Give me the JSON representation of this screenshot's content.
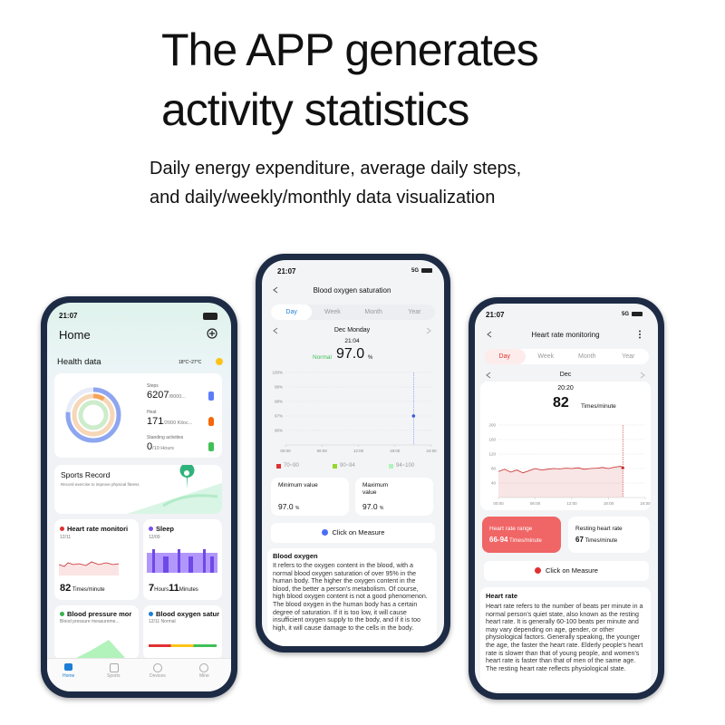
{
  "header": {
    "title_lines": [
      "The APP generates",
      "activity statistics"
    ],
    "subtitle_lines": [
      "Daily energy expenditure, average daily steps,",
      "and daily/weekly/monthly data visualization"
    ]
  },
  "left_phone": {
    "time": "21:07",
    "page_title": "Home",
    "section_title": "Health data",
    "weather": "18°C~27°C",
    "steps": {
      "label": "Steps",
      "value": "6207",
      "goal": "/8000..."
    },
    "heat": {
      "label": "Heat",
      "value": "171",
      "goal": "/2000 Kiloc..."
    },
    "standing": {
      "label": "Standing activities",
      "value": "0",
      "goal": "/10 Hours"
    },
    "sports_record": {
      "title": "Sports Record",
      "subtitle": "Record exercise to improve physical fitness"
    },
    "heart_card": {
      "title": "Heart rate monitori",
      "date": "12/11",
      "value": "82",
      "unit": "Times/minute"
    },
    "sleep_card": {
      "title": "Sleep",
      "date": "12/09",
      "hours": "7",
      "hours_unit": "Hours",
      "minutes": "11",
      "minutes_unit": "Minutes"
    },
    "bp_card": {
      "title": "Blood pressure mor",
      "subtitle": "Blood pressure measureme..."
    },
    "oxygen_card": {
      "title": "Blood oxygen satur",
      "subtitle": "12/11 Normal"
    },
    "tabs": [
      "Home",
      "Sports",
      "Devices",
      "Mine"
    ]
  },
  "center_phone": {
    "time": "21:07",
    "network": "5G",
    "page_title": "Blood oxygen saturation",
    "tabs": [
      "Day",
      "Week",
      "Month",
      "Year"
    ],
    "date": "Dec Monday",
    "reading_time": "21:04",
    "status": "Normal",
    "reading": "97.0",
    "reading_unit": "%",
    "chart": {
      "type": "scatter",
      "x": [
        21.07
      ],
      "values": [
        97
      ],
      "color": "#3b5bdb",
      "xlim": [
        0,
        24
      ],
      "xticks": [
        {
          "value": 0,
          "label": "00:00"
        },
        {
          "value": 6,
          "label": "06:00"
        },
        {
          "value": 12,
          "label": "12:00"
        },
        {
          "value": 18,
          "label": "18:00"
        },
        {
          "value": 24,
          "label": "24:00"
        }
      ],
      "ylim": [
        95,
        100
      ],
      "yticks": [
        {
          "value": 100,
          "label": "100%"
        },
        {
          "value": 99,
          "label": "99%"
        },
        {
          "value": 98,
          "label": "98%"
        },
        {
          "value": 97,
          "label": "97%"
        },
        {
          "value": 96,
          "label": "96%"
        }
      ],
      "grid": true
    },
    "legend": [
      {
        "label": "70~90",
        "color": "#e03131"
      },
      {
        "label": "90~94",
        "color": "#94d82d"
      },
      {
        "label": "94~100",
        "color": "#b2f2bb"
      }
    ],
    "min_card": {
      "label": "Minimum value",
      "value": "97.0",
      "unit": "%"
    },
    "max_card": {
      "label": "Maximum value",
      "value": "97.0",
      "unit": "%"
    },
    "button": "Click on Measure",
    "info_title": "Blood oxygen",
    "info_text": "It refers to the oxygen content in the blood, with a normal blood oxygen saturation of over 95% in the human body. The higher the oxygen content in the blood, the better a person's metabolism. Of course, high blood oxygen content is not a good phenomenon. The blood oxygen in the human body has a certain degree of saturation. If it is too low, it will cause insufficient oxygen supply to the body, and if it is too high, it will cause damage to the cells in the body."
  },
  "right_phone": {
    "time": "21:07",
    "network": "5G",
    "page_title": "Heart rate monitoring",
    "tabs": [
      "Day",
      "Week",
      "Month",
      "Year"
    ],
    "date": "Dec",
    "reading_time": "20:20",
    "reading": "82",
    "reading_unit": "Times/minute",
    "chart": {
      "type": "area",
      "x": [
        0,
        1,
        2,
        3,
        4,
        5,
        6,
        7,
        8,
        9,
        10,
        11,
        12,
        13,
        14,
        15,
        16,
        17,
        18,
        19,
        20,
        20.33
      ],
      "values": [
        72,
        78,
        70,
        76,
        68,
        74,
        80,
        76,
        78,
        80,
        79,
        81,
        80,
        82,
        78,
        80,
        81,
        83,
        80,
        84,
        86,
        82
      ],
      "color": "#c92a2a",
      "xlim": [
        0,
        24
      ],
      "xticks": [
        {
          "value": 0,
          "label": "00:00"
        },
        {
          "value": 6,
          "label": "06:00"
        },
        {
          "value": 12,
          "label": "12:00"
        },
        {
          "value": 18,
          "label": "18:00"
        },
        {
          "value": 24,
          "label": "24:00"
        }
      ],
      "ylim": [
        0,
        200
      ],
      "yticks": [
        40,
        80,
        120,
        160,
        200
      ],
      "grid": true
    },
    "range_card": {
      "label": "Heart rate range",
      "value": "66-94",
      "unit": "Times/minute"
    },
    "resting_card": {
      "label": "Resting heart rate",
      "value": "67",
      "unit": "Times/minute"
    },
    "button": "Click on Measure",
    "info_title": "Heart rate",
    "info_text": "Heart rate refers to the number of beats per minute in a normal person's quiet state, also known as the resting heart rate. It is generally 60-100 beats per minute and may vary depending on age, gender, or other physiological factors. Generally speaking, the younger the age, the faster the heart rate. Elderly people's heart rate is slower than that of young people, and women's heart rate is faster than that of men of the same age. The resting heart rate reflects physiological state."
  }
}
